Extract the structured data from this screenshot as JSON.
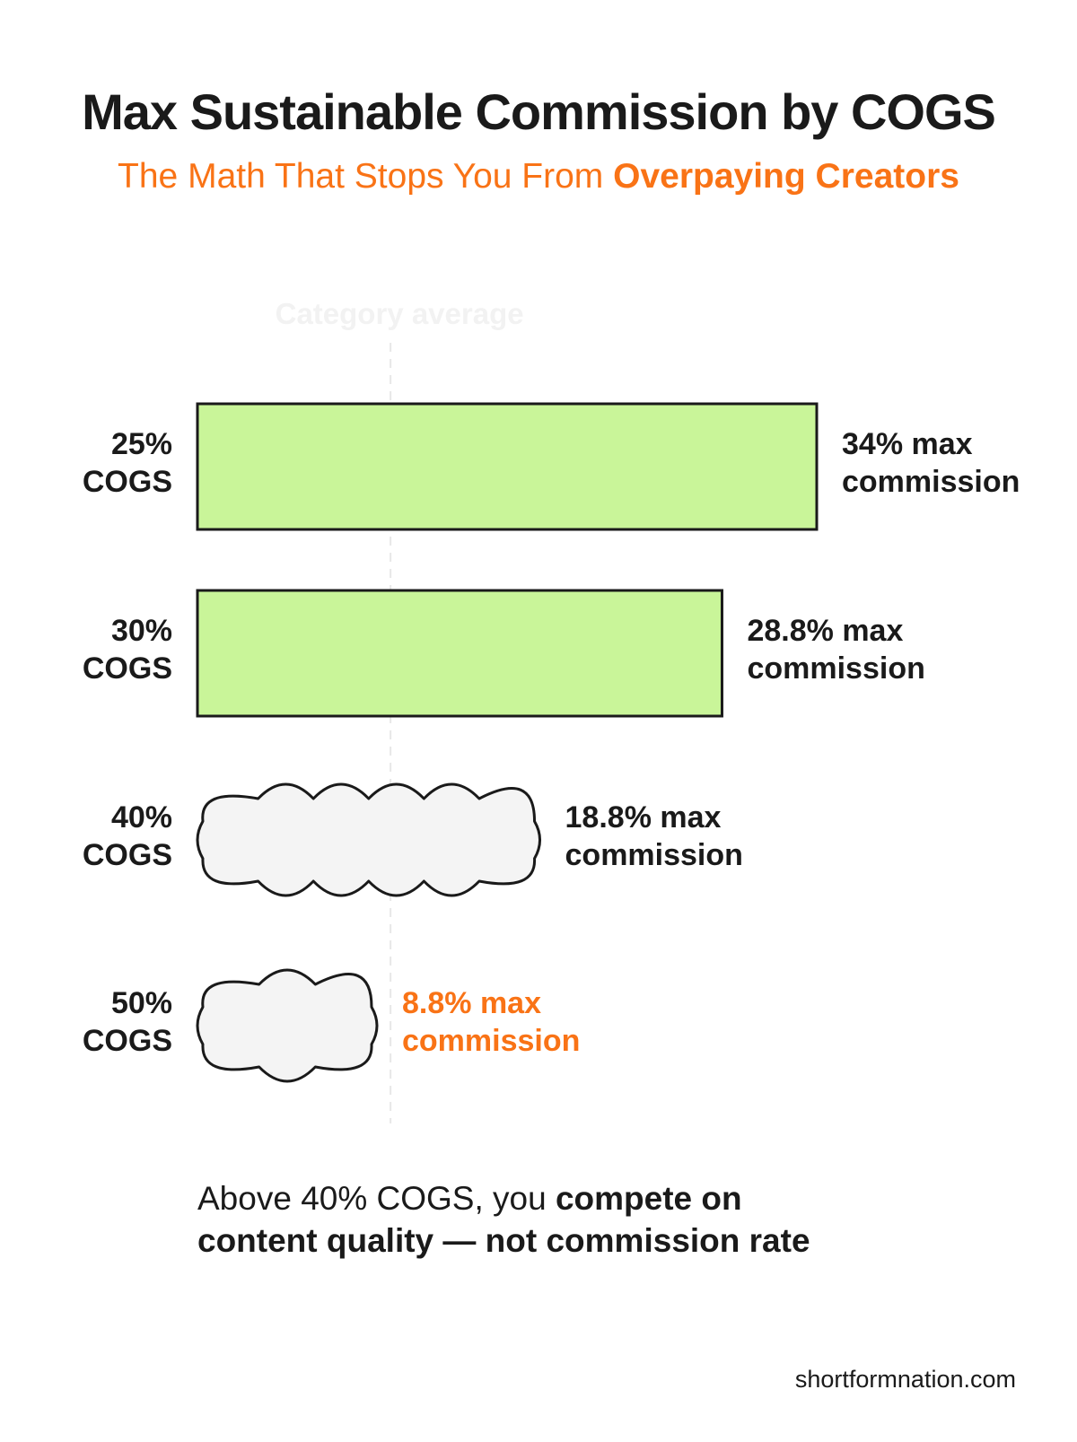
{
  "title": "Max Sustainable Commission by COGS",
  "subtitle": {
    "regular": "The Math That Stops You From ",
    "bold": "Overpaying Creators"
  },
  "chart_data": {
    "type": "bar",
    "orientation": "horizontal",
    "reference_line": {
      "label": "Category average",
      "value": 10.6
    },
    "categories": [
      {
        "line1": "25%",
        "line2": "COGS"
      },
      {
        "line1": "30%",
        "line2": "COGS"
      },
      {
        "line1": "40%",
        "line2": "COGS"
      },
      {
        "line1": "50%",
        "line2": "COGS"
      }
    ],
    "values": [
      34,
      28.8,
      18.8,
      8.8
    ],
    "value_labels": [
      {
        "line1": "34% max",
        "line2": "commission"
      },
      {
        "line1": "28.8% max",
        "line2": "commission"
      },
      {
        "line1": "18.8% max",
        "line2": "commission"
      },
      {
        "line1": "8.8% max",
        "line2": "commission"
      }
    ],
    "bar_styles": [
      "solid",
      "solid",
      "cloud",
      "cloud"
    ],
    "value_label_colors": [
      "#1a1a1a",
      "#1a1a1a",
      "#1a1a1a",
      "#f97316"
    ],
    "colors": {
      "solid_fill": "#c9f599",
      "cloud_fill": "#f4f4f4",
      "outline": "#1a1a1a",
      "reference_line": "#e8e8e8",
      "accent": "#f97316"
    },
    "xlim": [
      0,
      34
    ],
    "grid": false,
    "legend": "none"
  },
  "note": {
    "part1": "Above 40% COGS, you ",
    "part2_bold": "compete on",
    "part3_bold": "content quality — not commission rate"
  },
  "footer": "shortformnation.com"
}
